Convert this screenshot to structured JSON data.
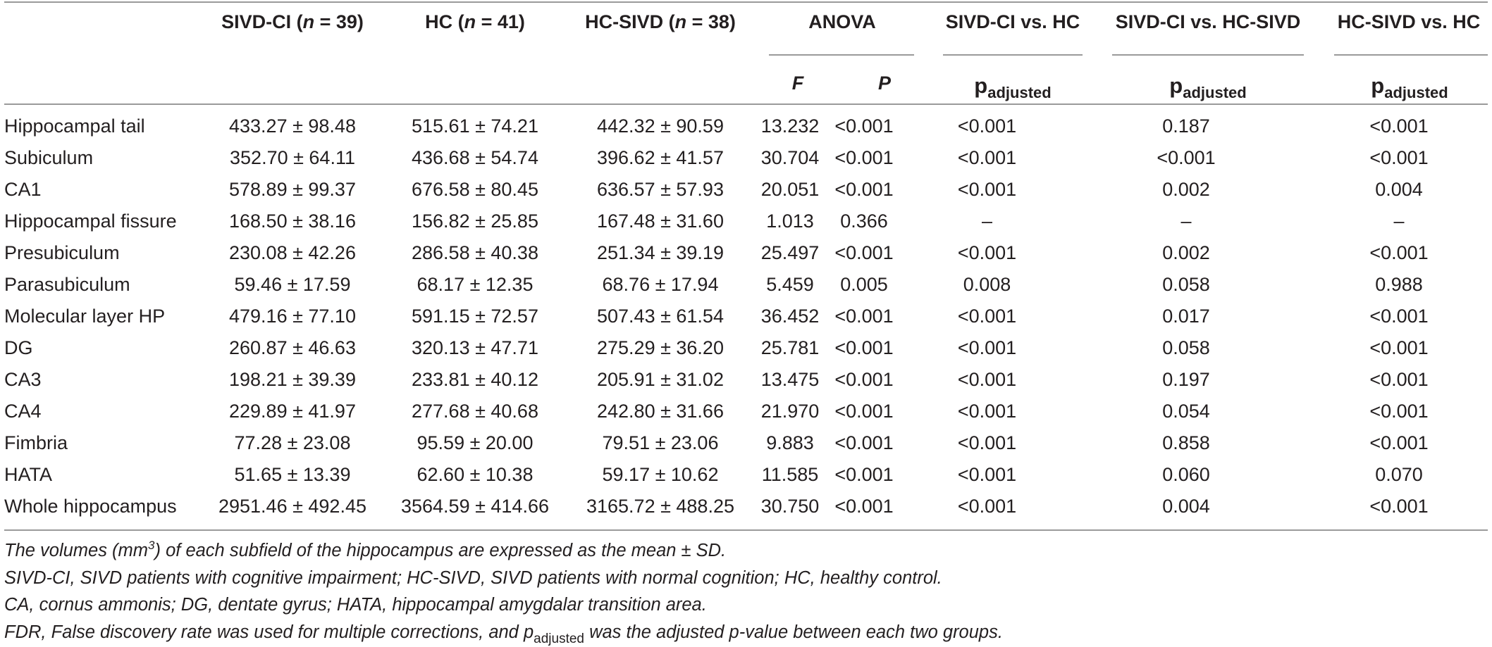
{
  "headers": {
    "sivd_ci": {
      "name": "SIVD-CI (",
      "n": "n",
      "eq": " = 39)"
    },
    "hc": {
      "name": "HC (",
      "n": "n",
      "eq": " = 41)"
    },
    "hc_sivd": {
      "name": "HC-SIVD (",
      "n": "n",
      "eq": " = 38)"
    },
    "anova": "ANOVA",
    "f": "F",
    "p": "P",
    "cmp1": "SIVD-CI vs. HC",
    "cmp2": "SIVD-CI vs. HC-SIVD",
    "cmp3": "HC-SIVD vs. HC",
    "p_letter": "p",
    "p_sub": "adjusted"
  },
  "rows": [
    [
      "Hippocampal tail",
      "433.27 ± 98.48",
      "515.61 ± 74.21",
      "442.32 ± 90.59",
      "13.232",
      "<0.001",
      "<0.001",
      "0.187",
      "<0.001"
    ],
    [
      "Subiculum",
      "352.70 ± 64.11",
      "436.68 ± 54.74",
      "396.62 ± 41.57",
      "30.704",
      "<0.001",
      "<0.001",
      "<0.001",
      "<0.001"
    ],
    [
      "CA1",
      "578.89 ± 99.37",
      "676.58 ± 80.45",
      "636.57 ± 57.93",
      "20.051",
      "<0.001",
      "<0.001",
      "0.002",
      "0.004"
    ],
    [
      "Hippocampal fissure",
      "168.50 ± 38.16",
      "156.82 ± 25.85",
      "167.48 ± 31.60",
      "1.013",
      "0.366",
      "–",
      "–",
      "–"
    ],
    [
      "Presubiculum",
      "230.08 ± 42.26",
      "286.58 ± 40.38",
      "251.34 ± 39.19",
      "25.497",
      "<0.001",
      "<0.001",
      "0.002",
      "<0.001"
    ],
    [
      "Parasubiculum",
      "59.46 ± 17.59",
      "68.17 ± 12.35",
      "68.76 ± 17.94",
      "5.459",
      "0.005",
      "0.008",
      "0.058",
      "0.988"
    ],
    [
      "Molecular layer HP",
      "479.16 ± 77.10",
      "591.15 ± 72.57",
      "507.43 ± 61.54",
      "36.452",
      "<0.001",
      "<0.001",
      "0.017",
      "<0.001"
    ],
    [
      "DG",
      "260.87 ± 46.63",
      "320.13 ± 47.71",
      "275.29 ± 36.20",
      "25.781",
      "<0.001",
      "<0.001",
      "0.058",
      "<0.001"
    ],
    [
      "CA3",
      "198.21 ± 39.39",
      "233.81 ± 40.12",
      "205.91 ± 31.02",
      "13.475",
      "<0.001",
      "<0.001",
      "0.197",
      "<0.001"
    ],
    [
      "CA4",
      "229.89 ± 41.97",
      "277.68 ± 40.68",
      "242.80 ± 31.66",
      "21.970",
      "<0.001",
      "<0.001",
      "0.054",
      "<0.001"
    ],
    [
      "Fimbria",
      "77.28 ± 23.08",
      "95.59 ± 20.00",
      "79.51 ± 23.06",
      "9.883",
      "<0.001",
      "<0.001",
      "0.858",
      "<0.001"
    ],
    [
      "HATA",
      "51.65 ± 13.39",
      "62.60 ± 10.38",
      "59.17 ± 10.62",
      "11.585",
      "<0.001",
      "<0.001",
      "0.060",
      "0.070"
    ],
    [
      "Whole hippocampus",
      "2951.46 ± 492.45",
      "3564.59 ± 414.66",
      "3165.72 ± 488.25",
      "30.750",
      "<0.001",
      "<0.001",
      "0.004",
      "<0.001"
    ]
  ],
  "notes": {
    "line1_a": "The volumes (mm",
    "line1_sup": "3",
    "line1_b": ") of each subfield of the hippocampus are expressed as the mean ± SD.",
    "line2": "SIVD-CI, SIVD patients with cognitive impairment; HC-SIVD, SIVD patients with normal cognition; HC, healthy control.",
    "line3": "CA, cornus ammonis; DG, dentate gyrus; HATA, hippocampal amygdalar transition area.",
    "line4_a": "FDR, False discovery rate was used for multiple corrections, and p",
    "line4_sub": "adjusted",
    "line4_b": " was the adjusted p-value between each two groups."
  }
}
